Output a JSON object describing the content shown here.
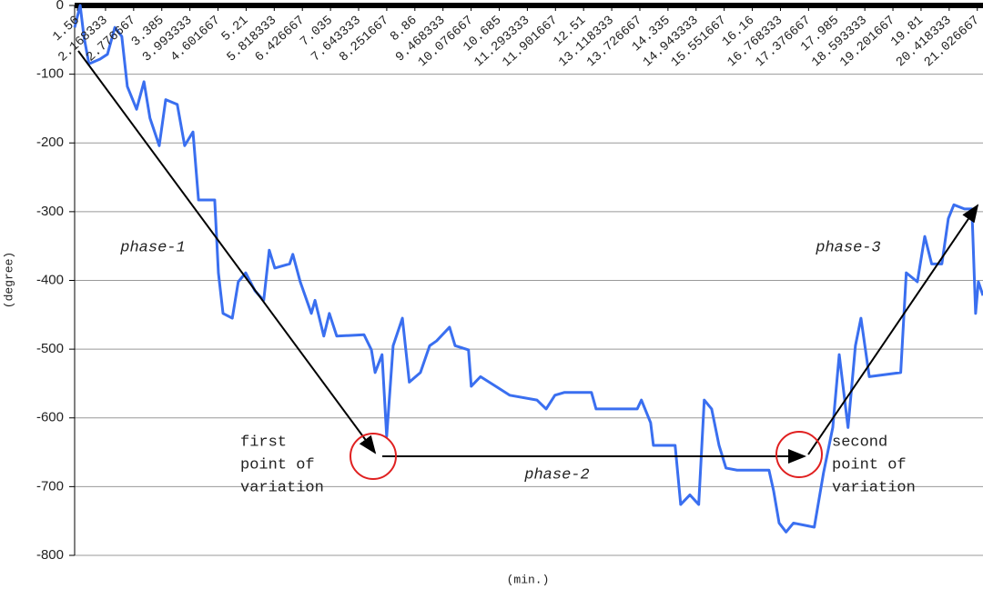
{
  "chart_data": {
    "type": "line",
    "y_label": "(degree)",
    "x_label": "(min.)",
    "x": [
      1.5,
      1.62,
      1.7,
      1.81,
      2.05,
      2.21,
      2.37,
      2.52,
      2.64,
      2.84,
      3.0,
      3.13,
      3.33,
      3.47,
      3.72,
      3.88,
      4.06,
      4.18,
      4.53,
      4.61,
      4.71,
      4.91,
      5.04,
      5.2,
      5.4,
      5.59,
      5.71,
      5.83,
      6.15,
      6.22,
      6.38,
      6.62,
      6.7,
      6.89,
      7.01,
      7.17,
      7.76,
      7.92,
      8.0,
      8.15,
      8.25,
      8.39,
      8.59,
      8.74,
      8.98,
      9.18,
      9.33,
      9.61,
      9.73,
      10.02,
      10.08,
      10.28,
      10.61,
      10.91,
      11.5,
      11.7,
      11.89,
      12.09,
      12.68,
      12.78,
      13.67,
      13.76,
      13.96,
      14.02,
      14.49,
      14.61,
      14.81,
      15.0,
      15.12,
      15.28,
      15.44,
      15.59,
      15.83,
      16.52,
      16.62,
      16.74,
      16.89,
      17.05,
      17.5,
      17.7,
      17.9,
      18.04,
      18.23,
      18.39,
      18.51,
      18.69,
      19.37,
      19.49,
      19.73,
      19.89,
      20.04,
      20.26,
      20.4,
      20.52,
      20.75,
      20.91,
      20.99,
      21.05,
      21.15
    ],
    "series": [
      {
        "color": "#3a6ff0",
        "values": [
          -32,
          0,
          -45,
          -85,
          -78,
          -71,
          -32,
          -45,
          -118,
          -151,
          -111,
          -164,
          -204,
          -137,
          -144,
          -204,
          -184,
          -283,
          -283,
          -389,
          -448,
          -455,
          -402,
          -389,
          -415,
          -429,
          -356,
          -382,
          -376,
          -362,
          -402,
          -448,
          -429,
          -481,
          -448,
          -481,
          -479,
          -501,
          -534,
          -508,
          -627,
          -495,
          -455,
          -548,
          -534,
          -495,
          -488,
          -468,
          -495,
          -501,
          -554,
          -540,
          -554,
          -567,
          -574,
          -587,
          -567,
          -563,
          -563,
          -587,
          -587,
          -574,
          -607,
          -640,
          -640,
          -726,
          -712,
          -726,
          -574,
          -587,
          -640,
          -673,
          -676,
          -676,
          -706,
          -753,
          -766,
          -753,
          -759,
          -680,
          -614,
          -508,
          -614,
          -495,
          -455,
          -540,
          -534,
          -389,
          -402,
          -336,
          -376,
          -376,
          -310,
          -290,
          -296,
          -296,
          -448,
          -402,
          -422
        ]
      }
    ],
    "xlim": [
      1.5,
      21.15
    ],
    "xticks": [
      1.56,
      2.168333,
      2.776667,
      3.385,
      3.993333,
      4.601667,
      5.21,
      5.818333,
      6.426667,
      7.035,
      7.643333,
      8.251667,
      8.86,
      9.468333,
      10.076667,
      10.685,
      11.293333,
      11.901667,
      12.51,
      13.118333,
      13.726667,
      14.335,
      14.943333,
      15.551667,
      16.16,
      16.768333,
      17.376667,
      17.985,
      18.593333,
      19.201667,
      19.81,
      20.418333,
      21.026667
    ],
    "ylim": [
      -800,
      0
    ],
    "yticks": [
      -800,
      -700,
      -600,
      -500,
      -400,
      -300,
      -200,
      -100,
      0
    ],
    "grid": true,
    "annotations": [
      {
        "lines": [
          "phase-1"
        ]
      },
      {
        "lines": [
          "phase-2"
        ]
      },
      {
        "lines": [
          "phase-3"
        ]
      },
      {
        "lines": [
          "first",
          "point of",
          "variation"
        ]
      },
      {
        "lines": [
          "second",
          "point of",
          "variation"
        ]
      }
    ]
  }
}
